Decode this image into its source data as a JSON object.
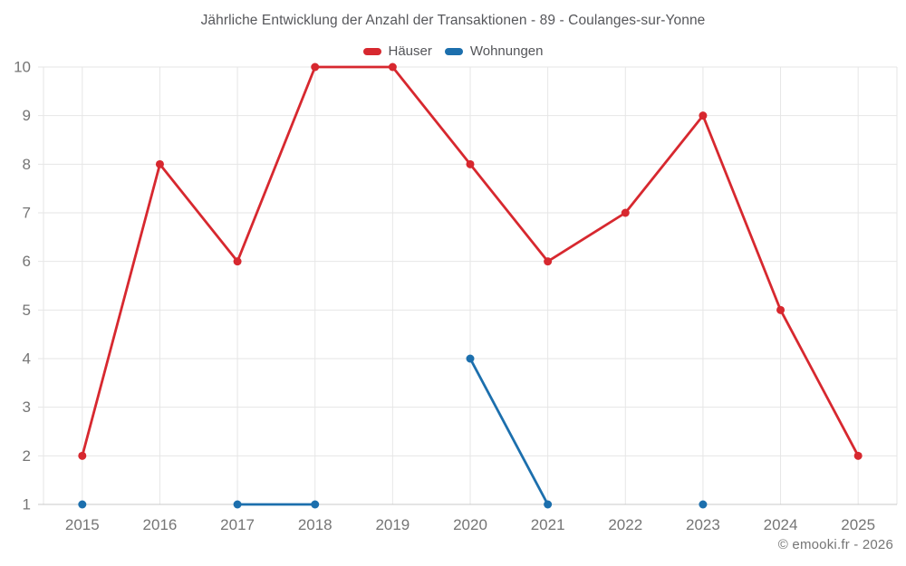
{
  "header": {
    "title": "Jährliche Entwicklung der Anzahl der Transaktionen - 89 - Coulanges-sur-Yonne"
  },
  "legend": {
    "items": [
      {
        "label": "Häuser",
        "color": "#d7282f"
      },
      {
        "label": "Wohnungen",
        "color": "#1c6fad"
      }
    ]
  },
  "footer": {
    "credit": "© emooki.fr - 2026"
  },
  "style": {
    "grid_color": "#e6e6e6",
    "axis_line_color": "#c8c8c8",
    "tick_label_color": "#757575",
    "background": "#ffffff"
  },
  "chart_data": {
    "type": "line",
    "title": "Jährliche Entwicklung der Anzahl der Transaktionen - 89 - Coulanges-sur-Yonne",
    "categories": [
      "2015",
      "2016",
      "2017",
      "2018",
      "2019",
      "2020",
      "2021",
      "2022",
      "2023",
      "2024",
      "2025"
    ],
    "series": [
      {
        "name": "Häuser",
        "color": "#d7282f",
        "values": [
          2,
          8,
          6,
          10,
          10,
          8,
          6,
          7,
          9,
          5,
          2
        ]
      },
      {
        "name": "Wohnungen",
        "color": "#1c6fad",
        "values": [
          1,
          null,
          1,
          1,
          null,
          4,
          1,
          null,
          1,
          null,
          null
        ]
      }
    ],
    "xlabel": "",
    "ylabel": "",
    "ylim": [
      1,
      10
    ],
    "yticks": [
      1,
      2,
      3,
      4,
      5,
      6,
      7,
      8,
      9,
      10
    ],
    "grid": true,
    "legend_position": "top",
    "gaps_allowed": true
  }
}
